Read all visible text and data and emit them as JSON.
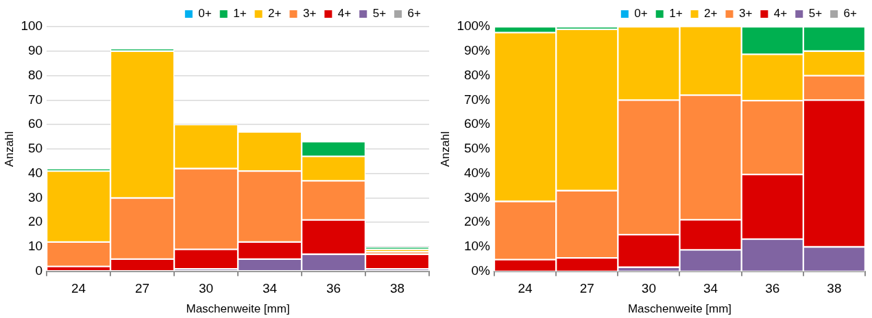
{
  "chart_data": [
    {
      "type": "bar",
      "stacked": true,
      "categories": [
        "24",
        "27",
        "30",
        "34",
        "36",
        "38"
      ],
      "xlabel": "Maschenweite [mm]",
      "ylabel": "Anzahl",
      "ylim": [
        0,
        100
      ],
      "yticks": [
        0,
        10,
        20,
        30,
        40,
        50,
        60,
        70,
        80,
        90,
        100
      ],
      "grid": "y",
      "legend": "top right",
      "series": [
        {
          "name": "6+",
          "color": "#a5a5a5",
          "values": [
            0,
            0,
            0,
            0,
            0,
            0
          ]
        },
        {
          "name": "5+",
          "color": "#8064a2",
          "values": [
            0,
            0,
            1,
            5,
            7,
            1
          ]
        },
        {
          "name": "4+",
          "color": "#dc0000",
          "values": [
            2,
            5,
            8,
            7,
            14,
            6
          ]
        },
        {
          "name": "3+",
          "color": "#ff883c",
          "values": [
            10,
            25,
            33,
            29,
            16,
            1
          ]
        },
        {
          "name": "2+",
          "color": "#ffc000",
          "values": [
            29,
            60,
            18,
            16,
            10,
            1
          ]
        },
        {
          "name": "1+",
          "color": "#00b050",
          "values": [
            1,
            1,
            0,
            0,
            6,
            1
          ]
        },
        {
          "name": "0+",
          "color": "#00b0f0",
          "values": [
            0,
            0,
            0,
            0,
            0,
            0
          ]
        }
      ]
    },
    {
      "type": "bar",
      "stacked": true,
      "categories": [
        "24",
        "27",
        "30",
        "34",
        "36",
        "38"
      ],
      "xlabel": "Maschenweite [mm]",
      "ylabel": "Anzahl",
      "ylim": [
        0,
        100
      ],
      "yticks": [
        {
          "value": 0,
          "label": "0%"
        },
        {
          "value": 10,
          "label": "10%"
        },
        {
          "value": 20,
          "label": "20%"
        },
        {
          "value": 30,
          "label": "30%"
        },
        {
          "value": 40,
          "label": "40%"
        },
        {
          "value": 50,
          "label": "50%"
        },
        {
          "value": 60,
          "label": "60%"
        },
        {
          "value": 70,
          "label": "70%"
        },
        {
          "value": 80,
          "label": "80%"
        },
        {
          "value": 90,
          "label": "90%"
        },
        {
          "value": 100,
          "label": "100%"
        }
      ],
      "legend": "top right",
      "series": [
        {
          "name": "6+",
          "color": "#a5a5a5",
          "values": [
            0,
            0,
            0,
            0,
            0,
            0
          ]
        },
        {
          "name": "5+",
          "color": "#8064a2",
          "values": [
            0,
            0,
            1.7,
            8.8,
            13.2,
            10
          ]
        },
        {
          "name": "4+",
          "color": "#dc0000",
          "values": [
            4.8,
            5.5,
            13.3,
            12.3,
            26.4,
            60
          ]
        },
        {
          "name": "3+",
          "color": "#ff883c",
          "values": [
            23.8,
            27.5,
            55,
            50.9,
            30.2,
            10
          ]
        },
        {
          "name": "2+",
          "color": "#ffc000",
          "values": [
            69,
            65.9,
            30,
            28.1,
            18.9,
            10
          ]
        },
        {
          "name": "1+",
          "color": "#00b050",
          "values": [
            2.4,
            1.1,
            0,
            0,
            11.3,
            10
          ]
        },
        {
          "name": "0+",
          "color": "#00b0f0",
          "values": [
            0,
            0,
            0,
            0,
            0,
            0
          ]
        }
      ]
    }
  ]
}
